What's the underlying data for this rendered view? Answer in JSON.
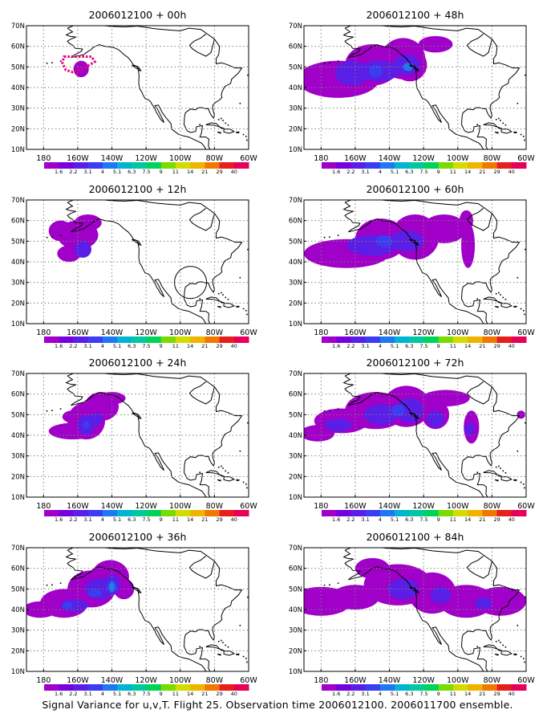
{
  "caption": "Signal Variance for u,v,T. Flight 25. Observation time 2006012100. 2006011700 ensemble.",
  "lat_labels": [
    "70N",
    "60N",
    "50N",
    "40N",
    "30N",
    "20N",
    "10N"
  ],
  "lon_labels": [
    "180",
    "160W",
    "140W",
    "120W",
    "100W",
    "80W",
    "60W"
  ],
  "colorbar": {
    "levels": [
      "1.6",
      "2.2",
      "3.1",
      "4",
      "5.1",
      "6.3",
      "7.5",
      "9",
      "11",
      "14",
      "21",
      "29",
      "40"
    ],
    "colors": [
      "#a000c8",
      "#7800dc",
      "#5a1ee6",
      "#3c3cf0",
      "#1e78f0",
      "#00b4d2",
      "#00c8a0",
      "#00d25a",
      "#78dc00",
      "#d2dc00",
      "#f0b400",
      "#f07800",
      "#e61e1e",
      "#e6005a"
    ]
  },
  "panels": [
    {
      "title": "2006012100 + 00h"
    },
    {
      "title": "2006012100 + 48h"
    },
    {
      "title": "2006012100 + 12h"
    },
    {
      "title": "2006012100 + 60h"
    },
    {
      "title": "2006012100 + 24h"
    },
    {
      "title": "2006012100 + 72h"
    },
    {
      "title": "2006012100 + 36h"
    },
    {
      "title": "2006012100 + 84h"
    }
  ]
}
